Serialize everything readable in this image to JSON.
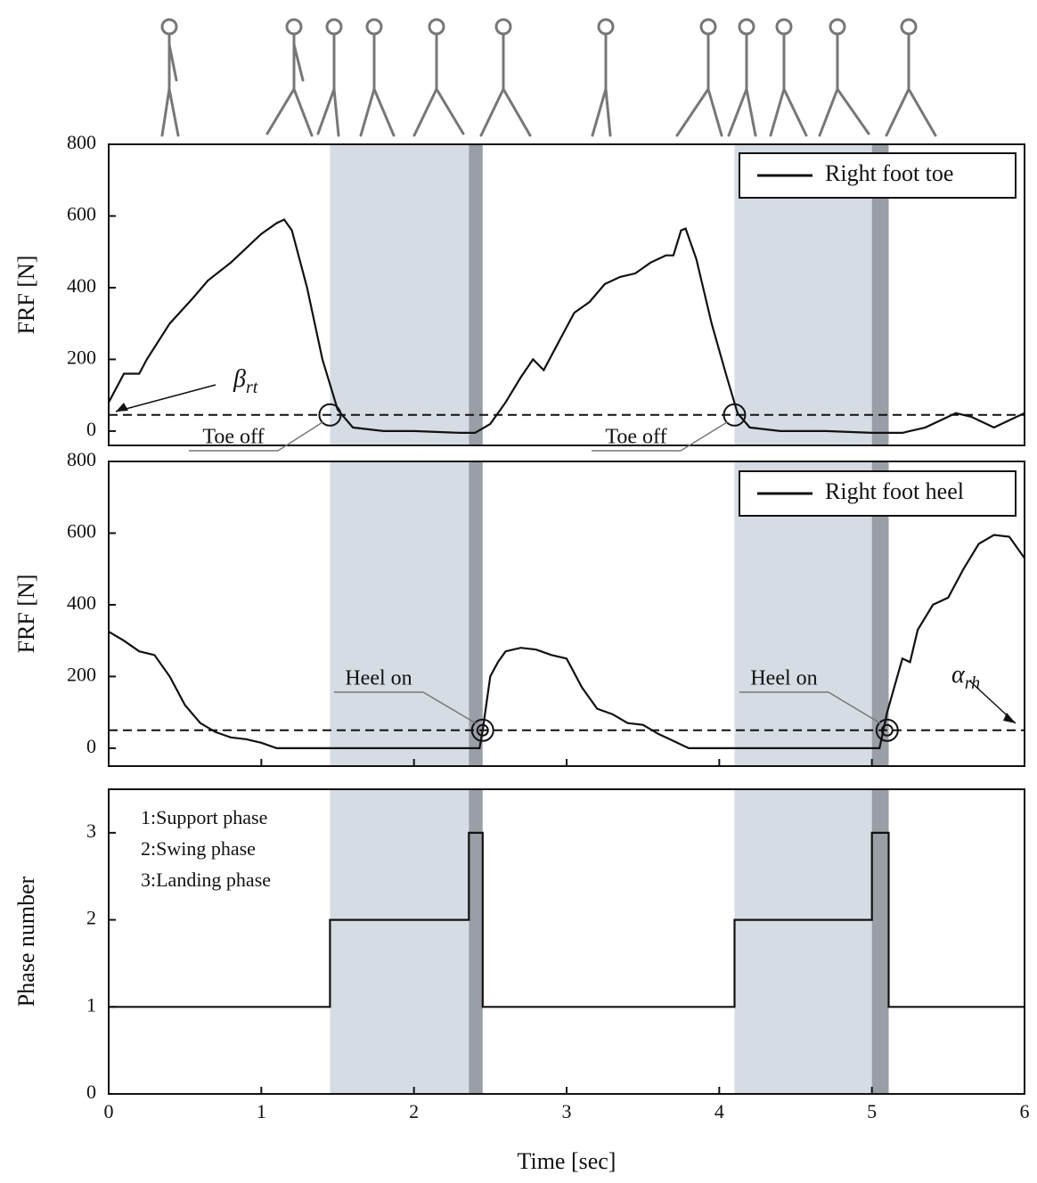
{
  "chart_data": [
    {
      "type": "line",
      "y_label": "FRF [N]",
      "xlim": [
        0,
        6
      ],
      "ylim": [
        -40,
        800
      ],
      "yticks": [
        0,
        200,
        400,
        600,
        800
      ],
      "threshold": 45,
      "x": [
        0,
        0.1,
        0.2,
        0.25,
        0.4,
        0.55,
        0.65,
        0.8,
        0.9,
        1.0,
        1.1,
        1.15,
        1.2,
        1.3,
        1.4,
        1.5,
        1.6,
        1.8,
        2.0,
        2.3,
        2.4,
        2.5,
        2.6,
        2.7,
        2.78,
        2.85,
        2.95,
        3.05,
        3.15,
        3.25,
        3.35,
        3.45,
        3.55,
        3.65,
        3.7,
        3.75,
        3.78,
        3.85,
        3.95,
        4.05,
        4.12,
        4.2,
        4.4,
        4.7,
        5.0,
        5.2,
        5.35,
        5.55,
        5.65,
        5.8,
        5.95,
        6.0
      ],
      "series": [
        {
          "name": "Right foot toe",
          "color": "#111111",
          "values": [
            80,
            160,
            160,
            200,
            300,
            370,
            420,
            470,
            510,
            550,
            580,
            590,
            560,
            400,
            200,
            60,
            10,
            0,
            0,
            -5,
            -5,
            20,
            80,
            150,
            200,
            170,
            250,
            330,
            360,
            410,
            430,
            440,
            470,
            490,
            490,
            560,
            565,
            480,
            300,
            150,
            50,
            10,
            0,
            0,
            -5,
            -5,
            10,
            50,
            40,
            10,
            40,
            50
          ]
        }
      ],
      "annotations": [
        {
          "text": "Toe off",
          "at": [
            1.45,
            45
          ]
        },
        {
          "text": "Toe off",
          "at": [
            4.1,
            45
          ]
        }
      ],
      "symbol": {
        "letter": "β",
        "subscript": "rt"
      }
    },
    {
      "type": "line",
      "y_label": "FRF [N]",
      "xlim": [
        0,
        6
      ],
      "ylim": [
        -50,
        800
      ],
      "yticks": [
        0,
        200,
        400,
        600,
        800
      ],
      "threshold": 50,
      "x": [
        0,
        0.1,
        0.2,
        0.3,
        0.4,
        0.5,
        0.6,
        0.7,
        0.8,
        0.9,
        1.0,
        1.1,
        1.5,
        2.0,
        2.43,
        2.45,
        2.5,
        2.55,
        2.6,
        2.7,
        2.8,
        2.9,
        3.0,
        3.1,
        3.2,
        3.3,
        3.4,
        3.5,
        3.6,
        3.7,
        3.8,
        4.0,
        4.5,
        5.05,
        5.1,
        5.2,
        5.25,
        5.3,
        5.4,
        5.5,
        5.6,
        5.7,
        5.8,
        5.9,
        6.0
      ],
      "series": [
        {
          "name": "Right foot heel",
          "color": "#111111",
          "values": [
            325,
            300,
            270,
            260,
            200,
            120,
            70,
            45,
            30,
            25,
            15,
            0,
            0,
            0,
            0,
            50,
            200,
            240,
            270,
            280,
            275,
            260,
            250,
            170,
            110,
            95,
            70,
            65,
            40,
            20,
            0,
            0,
            0,
            0,
            100,
            250,
            240,
            330,
            400,
            420,
            500,
            570,
            595,
            590,
            530
          ]
        }
      ],
      "annotations": [
        {
          "text": "Heel on",
          "at": [
            2.45,
            50
          ]
        },
        {
          "text": "Heel on",
          "at": [
            5.1,
            50
          ]
        }
      ],
      "symbol": {
        "letter": "α",
        "subscript": "rh"
      }
    },
    {
      "type": "line",
      "y_label": "Phase number",
      "x_label": "Time [sec]",
      "xlim": [
        0,
        6
      ],
      "ylim": [
        0,
        3.5
      ],
      "yticks": [
        0,
        1,
        2,
        3
      ],
      "xticks": [
        0,
        1,
        2,
        3,
        4,
        5,
        6
      ],
      "x": [
        0,
        1.45,
        1.45,
        2.36,
        2.36,
        2.45,
        2.45,
        4.1,
        4.1,
        5.0,
        5.0,
        5.11,
        5.11,
        6
      ],
      "series": [
        {
          "name": "Phase",
          "color": "#111111",
          "values": [
            1,
            1,
            2,
            2,
            3,
            3,
            1,
            1,
            2,
            2,
            3,
            3,
            1,
            1
          ]
        }
      ],
      "notes": [
        "1:Support phase",
        "2:Swing phase",
        "3:Landing phase"
      ],
      "spans": [
        {
          "start": 1.45,
          "end": 2.36,
          "color": "#d6dce4"
        },
        {
          "start": 2.36,
          "end": 2.45,
          "color": "#9a9ea6"
        },
        {
          "start": 4.1,
          "end": 5.0,
          "color": "#d6dce4"
        },
        {
          "start": 5.0,
          "end": 5.11,
          "color": "#9a9ea6"
        }
      ]
    }
  ]
}
